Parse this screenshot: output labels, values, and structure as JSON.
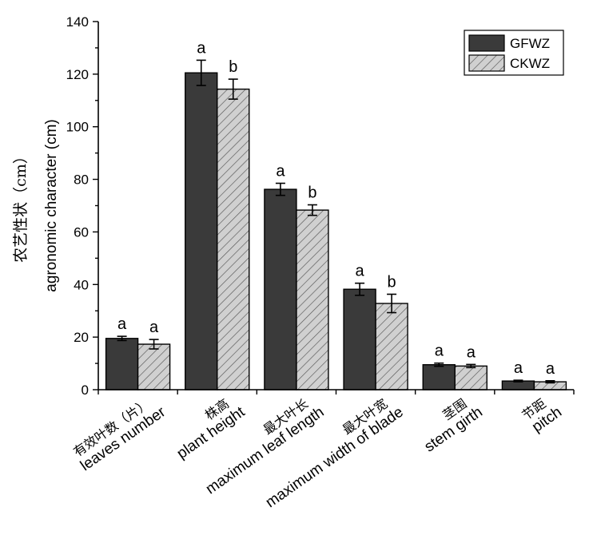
{
  "chart_data": {
    "type": "bar",
    "title": "",
    "ylabel_cn": "农艺性状（cm）",
    "ylabel": "agronomic character (cm)",
    "xlabel": "",
    "ylim": [
      0,
      140
    ],
    "yticks": [
      0,
      20,
      40,
      60,
      80,
      100,
      120,
      140
    ],
    "grid": false,
    "legend_position": "top-right",
    "categories": [
      {
        "cn": "有效叶数（片）",
        "en": "leaves number"
      },
      {
        "cn": "株高",
        "en": "plant height"
      },
      {
        "cn": "最大叶长",
        "en": "maximum leaf length"
      },
      {
        "cn": "最大叶宽",
        "en": "maximum width of blade"
      },
      {
        "cn": "茎围",
        "en": "stem girth"
      },
      {
        "cn": "节距",
        "en": "pitch"
      }
    ],
    "series": [
      {
        "name": "GFWZ",
        "color": "#3a3a3a",
        "pattern": "solid",
        "values": [
          19.5,
          120.5,
          76.2,
          38.2,
          9.5,
          3.3
        ],
        "errors": [
          0.8,
          4.8,
          2.3,
          2.3,
          0.6,
          0.3
        ],
        "labels": [
          "a",
          "a",
          "a",
          "a",
          "a",
          "a"
        ]
      },
      {
        "name": "CKWZ",
        "color": "#d0d0d0",
        "pattern": "hatched",
        "values": [
          17.3,
          114.3,
          68.3,
          32.8,
          9.0,
          3.0
        ],
        "errors": [
          1.8,
          3.8,
          2.0,
          3.5,
          0.6,
          0.4
        ],
        "labels": [
          "a",
          "b",
          "b",
          "b",
          "a",
          "a"
        ]
      }
    ]
  }
}
